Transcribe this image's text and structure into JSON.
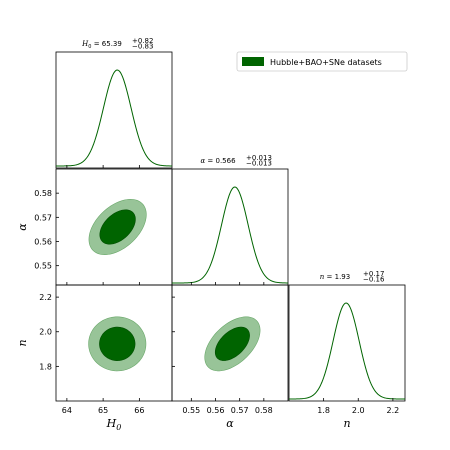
{
  "chart_data": {
    "type": "triangle",
    "legend": "Hubble+BAO+SNe datasets",
    "legend_position": "top-right",
    "color": "#006400",
    "parameters": [
      {
        "symbol": "H",
        "sub": "0",
        "mean": 65.39,
        "err_up": 0.82,
        "err_down": 0.83,
        "mean_text": "65.39",
        "up_text": "+0.82",
        "down_text": "−0.83",
        "axis_label": "H0",
        "range": [
          63.7,
          66.9
        ],
        "ticks": [
          64,
          65,
          66
        ],
        "tick_labels": [
          "64",
          "65",
          "66"
        ]
      },
      {
        "symbol": "α",
        "sub": "",
        "mean": 0.566,
        "err_up": 0.013,
        "err_down": 0.013,
        "mean_text": "0.566",
        "up_text": "+0.013",
        "down_text": "−0.013",
        "axis_label": "α",
        "range": [
          0.542,
          0.59
        ],
        "ticks": [
          0.55,
          0.56,
          0.57,
          0.58
        ],
        "tick_labels": [
          "0.55",
          "0.56",
          "0.57",
          "0.58"
        ]
      },
      {
        "symbol": "n",
        "sub": "",
        "mean": 1.93,
        "err_up": 0.17,
        "err_down": 0.16,
        "mean_text": "1.93",
        "up_text": "+0.17",
        "down_text": "−0.16",
        "axis_label": "n",
        "range": [
          1.6,
          2.27
        ],
        "ticks": [
          1.8,
          2.0,
          2.2
        ],
        "tick_labels": [
          "1.8",
          "2.0",
          "2.2"
        ]
      }
    ],
    "panels": {
      "marginals": [
        {
          "param": 0,
          "center": 65.39,
          "sigma": 0.38
        },
        {
          "param": 1,
          "center": 0.568,
          "sigma": 0.0055
        },
        {
          "param": 2,
          "center": 1.93,
          "sigma": 0.075
        }
      ],
      "contours_2d": [
        {
          "x": 0,
          "y": 1,
          "center": [
            65.4,
            0.566
          ],
          "sigma": [
            0.38,
            0.0055
          ],
          "rho": 0.45
        },
        {
          "x": 0,
          "y": 2,
          "center": [
            65.39,
            1.93
          ],
          "sigma": [
            0.38,
            0.075
          ],
          "rho": 0.0
        },
        {
          "x": 1,
          "y": 2,
          "center": [
            0.567,
            1.93
          ],
          "sigma": [
            0.0055,
            0.075
          ],
          "rho": 0.5
        }
      ],
      "contour_levels": [
        "68%",
        "95%"
      ],
      "contour_colors": [
        "#006400",
        "#98c498"
      ]
    }
  }
}
